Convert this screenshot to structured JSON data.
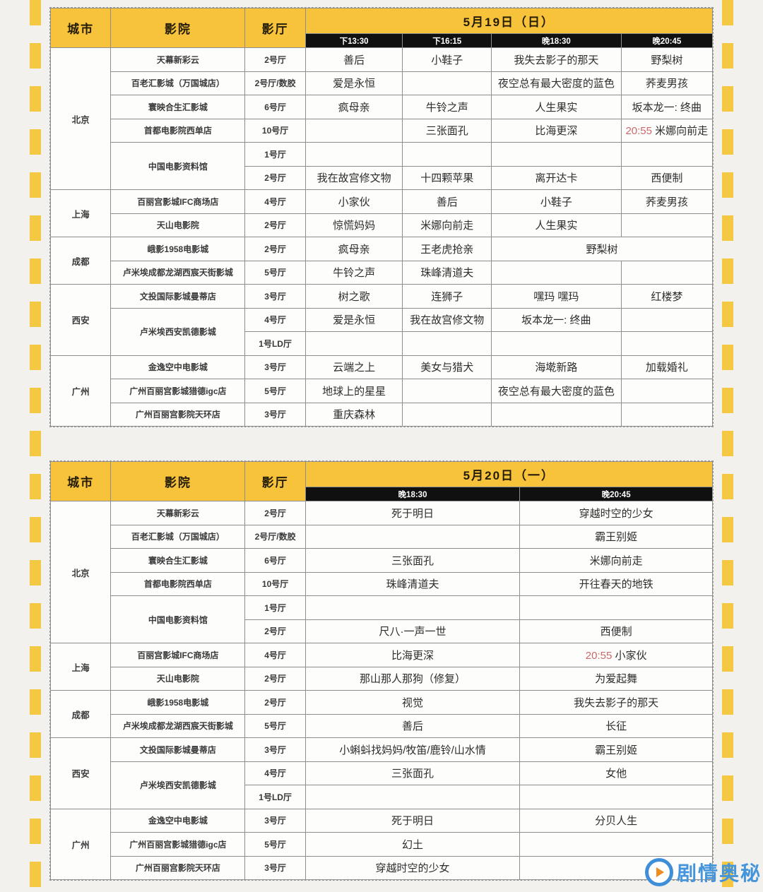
{
  "colors": {
    "accent_yellow": "#F7C33B",
    "time_bar_black": "#101010",
    "highlight_red": "#C96A6A",
    "watermark_blue": "#4495DB"
  },
  "watermark": {
    "text": "剧情奥秘"
  },
  "tables": [
    {
      "date_title": "5月19日（日）",
      "column_headers": [
        "城市",
        "影院",
        "影厅"
      ],
      "time_headers": [
        "下13:30",
        "下16:15",
        "晚18:30",
        "晚20:45"
      ],
      "column_widths_pct": [
        9.1,
        20.3,
        9.1,
        14.7,
        13.4,
        19.6,
        13.8
      ],
      "rows": [
        [
          {
            "text": "北京",
            "kind": "city",
            "rowspan": 6
          },
          {
            "text": "天幕新彩云",
            "kind": "cinema"
          },
          {
            "text": "2号厅",
            "kind": "hall"
          },
          {
            "text": "善后",
            "kind": "movie"
          },
          {
            "text": "小鞋子",
            "kind": "movie"
          },
          {
            "text": "我失去影子的那天",
            "kind": "movie"
          },
          {
            "text": "野梨树",
            "kind": "movie"
          }
        ],
        [
          {
            "text": "百老汇影城（万国城店）",
            "kind": "cinema"
          },
          {
            "text": "2号厅/数胶",
            "kind": "hall"
          },
          {
            "text": "爱是永恒",
            "kind": "movie"
          },
          {
            "text": "",
            "kind": "movie"
          },
          {
            "text": "夜空总有最大密度的蓝色",
            "kind": "movie"
          },
          {
            "text": "荞麦男孩",
            "kind": "movie"
          }
        ],
        [
          {
            "text": "寰映合生汇影城",
            "kind": "cinema"
          },
          {
            "text": "6号厅",
            "kind": "hall"
          },
          {
            "text": "疯母亲",
            "kind": "movie"
          },
          {
            "text": "牛铃之声",
            "kind": "movie"
          },
          {
            "text": "人生果实",
            "kind": "movie"
          },
          {
            "text": "坂本龙一: 终曲",
            "kind": "movie"
          }
        ],
        [
          {
            "text": "首都电影院西单店",
            "kind": "cinema"
          },
          {
            "text": "10号厅",
            "kind": "hall"
          },
          {
            "text": "",
            "kind": "movie"
          },
          {
            "text": "三张面孔",
            "kind": "movie"
          },
          {
            "text": "比海更深",
            "kind": "movie"
          },
          {
            "text": "米娜向前走",
            "kind": "movie",
            "red_time": "20:55"
          }
        ],
        [
          {
            "text": "中国电影资料馆",
            "kind": "cinema",
            "rowspan": 2
          },
          {
            "text": "1号厅",
            "kind": "hall"
          },
          {
            "text": "",
            "kind": "movie"
          },
          {
            "text": "",
            "kind": "movie"
          },
          {
            "text": "",
            "kind": "movie"
          },
          {
            "text": "",
            "kind": "movie"
          }
        ],
        [
          {
            "text": "2号厅",
            "kind": "hall"
          },
          {
            "text": "我在故宫修文物",
            "kind": "movie"
          },
          {
            "text": "十四颗苹果",
            "kind": "movie"
          },
          {
            "text": "离开达卡",
            "kind": "movie"
          },
          {
            "text": "西便制",
            "kind": "movie"
          }
        ],
        [
          {
            "text": "上海",
            "kind": "city",
            "rowspan": 2
          },
          {
            "text": "百丽宫影城IFC商场店",
            "kind": "cinema"
          },
          {
            "text": "4号厅",
            "kind": "hall"
          },
          {
            "text": "小家伙",
            "kind": "movie"
          },
          {
            "text": "善后",
            "kind": "movie"
          },
          {
            "text": "小鞋子",
            "kind": "movie"
          },
          {
            "text": "荞麦男孩",
            "kind": "movie"
          }
        ],
        [
          {
            "text": "天山电影院",
            "kind": "cinema"
          },
          {
            "text": "2号厅",
            "kind": "hall"
          },
          {
            "text": "惊慌妈妈",
            "kind": "movie"
          },
          {
            "text": "米娜向前走",
            "kind": "movie"
          },
          {
            "text": "人生果实",
            "kind": "movie"
          },
          {
            "text": "",
            "kind": "movie"
          }
        ],
        [
          {
            "text": "成都",
            "kind": "city",
            "rowspan": 2
          },
          {
            "text": "峨影1958电影城",
            "kind": "cinema"
          },
          {
            "text": "2号厅",
            "kind": "hall"
          },
          {
            "text": "疯母亲",
            "kind": "movie"
          },
          {
            "text": "王老虎抢亲",
            "kind": "movie"
          },
          {
            "text": "野梨树",
            "kind": "movie",
            "colspan": 2
          }
        ],
        [
          {
            "text": "卢米埃成都龙湖西宸天街影城",
            "kind": "cinema"
          },
          {
            "text": "5号厅",
            "kind": "hall"
          },
          {
            "text": "牛铃之声",
            "kind": "movie"
          },
          {
            "text": "珠峰清道夫",
            "kind": "movie"
          },
          {
            "text": "",
            "kind": "movie"
          },
          {
            "text": "",
            "kind": "movie"
          }
        ],
        [
          {
            "text": "西安",
            "kind": "city",
            "rowspan": 3
          },
          {
            "text": "文投国际影城曼蒂店",
            "kind": "cinema"
          },
          {
            "text": "3号厅",
            "kind": "hall"
          },
          {
            "text": "树之歌",
            "kind": "movie"
          },
          {
            "text": "连狮子",
            "kind": "movie"
          },
          {
            "text": "嘿玛 嘿玛",
            "kind": "movie"
          },
          {
            "text": "红楼梦",
            "kind": "movie"
          }
        ],
        [
          {
            "text": "卢米埃西安凯德影城",
            "kind": "cinema",
            "rowspan": 2
          },
          {
            "text": "4号厅",
            "kind": "hall"
          },
          {
            "text": "爱是永恒",
            "kind": "movie"
          },
          {
            "text": "我在故宫修文物",
            "kind": "movie"
          },
          {
            "text": "坂本龙一: 终曲",
            "kind": "movie"
          },
          {
            "text": "",
            "kind": "movie"
          }
        ],
        [
          {
            "text": "1号LD厅",
            "kind": "hall"
          },
          {
            "text": "",
            "kind": "movie"
          },
          {
            "text": "",
            "kind": "movie"
          },
          {
            "text": "",
            "kind": "movie"
          },
          {
            "text": "",
            "kind": "movie"
          }
        ],
        [
          {
            "text": "广州",
            "kind": "city",
            "rowspan": 3
          },
          {
            "text": "金逸空中电影城",
            "kind": "cinema"
          },
          {
            "text": "3号厅",
            "kind": "hall"
          },
          {
            "text": "云端之上",
            "kind": "movie"
          },
          {
            "text": "美女与猎犬",
            "kind": "movie"
          },
          {
            "text": "海墘新路",
            "kind": "movie"
          },
          {
            "text": "加载婚礼",
            "kind": "movie"
          }
        ],
        [
          {
            "text": "广州百丽宫影城猎德igc店",
            "kind": "cinema"
          },
          {
            "text": "5号厅",
            "kind": "hall"
          },
          {
            "text": "地球上的星星",
            "kind": "movie"
          },
          {
            "text": "",
            "kind": "movie"
          },
          {
            "text": "夜空总有最大密度的蓝色",
            "kind": "movie"
          },
          {
            "text": "",
            "kind": "movie"
          }
        ],
        [
          {
            "text": "广州百丽宫影院天环店",
            "kind": "cinema"
          },
          {
            "text": "3号厅",
            "kind": "hall"
          },
          {
            "text": "重庆森林",
            "kind": "movie"
          },
          {
            "text": "",
            "kind": "movie"
          },
          {
            "text": "",
            "kind": "movie"
          },
          {
            "text": "",
            "kind": "movie"
          }
        ]
      ]
    },
    {
      "date_title": "5月20日（一）",
      "column_headers": [
        "城市",
        "影院",
        "影厅"
      ],
      "time_headers": [
        "晚18:30",
        "晚20:45"
      ],
      "column_widths_pct": [
        9.1,
        20.3,
        9.1,
        32.4,
        29.1
      ],
      "rows": [
        [
          {
            "text": "北京",
            "kind": "city",
            "rowspan": 6
          },
          {
            "text": "天幕新彩云",
            "kind": "cinema"
          },
          {
            "text": "2号厅",
            "kind": "hall"
          },
          {
            "text": "死于明日",
            "kind": "movie"
          },
          {
            "text": "穿越时空的少女",
            "kind": "movie"
          }
        ],
        [
          {
            "text": "百老汇影城（万国城店）",
            "kind": "cinema"
          },
          {
            "text": "2号厅/数胶",
            "kind": "hall"
          },
          {
            "text": "",
            "kind": "movie"
          },
          {
            "text": "霸王别姬",
            "kind": "movie"
          }
        ],
        [
          {
            "text": "寰映合生汇影城",
            "kind": "cinema"
          },
          {
            "text": "6号厅",
            "kind": "hall"
          },
          {
            "text": "三张面孔",
            "kind": "movie"
          },
          {
            "text": "米娜向前走",
            "kind": "movie"
          }
        ],
        [
          {
            "text": "首都电影院西单店",
            "kind": "cinema"
          },
          {
            "text": "10号厅",
            "kind": "hall"
          },
          {
            "text": "珠峰清道夫",
            "kind": "movie"
          },
          {
            "text": "开往春天的地铁",
            "kind": "movie"
          }
        ],
        [
          {
            "text": "中国电影资料馆",
            "kind": "cinema",
            "rowspan": 2
          },
          {
            "text": "1号厅",
            "kind": "hall"
          },
          {
            "text": "",
            "kind": "movie"
          },
          {
            "text": "",
            "kind": "movie"
          }
        ],
        [
          {
            "text": "2号厅",
            "kind": "hall"
          },
          {
            "text": "尺八·一声一世",
            "kind": "movie"
          },
          {
            "text": "西便制",
            "kind": "movie"
          }
        ],
        [
          {
            "text": "上海",
            "kind": "city",
            "rowspan": 2
          },
          {
            "text": "百丽宫影城IFC商场店",
            "kind": "cinema"
          },
          {
            "text": "4号厅",
            "kind": "hall"
          },
          {
            "text": "比海更深",
            "kind": "movie"
          },
          {
            "text": "小家伙",
            "kind": "movie",
            "red_time": "20:55"
          }
        ],
        [
          {
            "text": "天山电影院",
            "kind": "cinema"
          },
          {
            "text": "2号厅",
            "kind": "hall"
          },
          {
            "text": "那山那人那狗（修复）",
            "kind": "movie"
          },
          {
            "text": "为爱起舞",
            "kind": "movie"
          }
        ],
        [
          {
            "text": "成都",
            "kind": "city",
            "rowspan": 2
          },
          {
            "text": "峨影1958电影城",
            "kind": "cinema"
          },
          {
            "text": "2号厅",
            "kind": "hall"
          },
          {
            "text": "视觉",
            "kind": "movie"
          },
          {
            "text": "我失去影子的那天",
            "kind": "movie"
          }
        ],
        [
          {
            "text": "卢米埃成都龙湖西宸天街影城",
            "kind": "cinema"
          },
          {
            "text": "5号厅",
            "kind": "hall"
          },
          {
            "text": "善后",
            "kind": "movie"
          },
          {
            "text": "长征",
            "kind": "movie"
          }
        ],
        [
          {
            "text": "西安",
            "kind": "city",
            "rowspan": 3
          },
          {
            "text": "文投国际影城曼蒂店",
            "kind": "cinema"
          },
          {
            "text": "3号厅",
            "kind": "hall"
          },
          {
            "text": "小蝌蚪找妈妈/牧笛/鹿铃/山水情",
            "kind": "movie"
          },
          {
            "text": "霸王别姬",
            "kind": "movie"
          }
        ],
        [
          {
            "text": "卢米埃西安凯德影城",
            "kind": "cinema",
            "rowspan": 2
          },
          {
            "text": "4号厅",
            "kind": "hall"
          },
          {
            "text": "三张面孔",
            "kind": "movie"
          },
          {
            "text": "女他",
            "kind": "movie"
          }
        ],
        [
          {
            "text": "1号LD厅",
            "kind": "hall"
          },
          {
            "text": "",
            "kind": "movie"
          },
          {
            "text": "",
            "kind": "movie"
          }
        ],
        [
          {
            "text": "广州",
            "kind": "city",
            "rowspan": 3
          },
          {
            "text": "金逸空中电影城",
            "kind": "cinema"
          },
          {
            "text": "3号厅",
            "kind": "hall"
          },
          {
            "text": "死于明日",
            "kind": "movie"
          },
          {
            "text": "分贝人生",
            "kind": "movie"
          }
        ],
        [
          {
            "text": "广州百丽宫影城猎德igc店",
            "kind": "cinema"
          },
          {
            "text": "5号厅",
            "kind": "hall"
          },
          {
            "text": "幻土",
            "kind": "movie"
          },
          {
            "text": "",
            "kind": "movie"
          }
        ],
        [
          {
            "text": "广州百丽宫影院天环店",
            "kind": "cinema"
          },
          {
            "text": "3号厅",
            "kind": "hall"
          },
          {
            "text": "穿越时空的少女",
            "kind": "movie"
          },
          {
            "text": "",
            "kind": "movie"
          }
        ]
      ]
    }
  ]
}
